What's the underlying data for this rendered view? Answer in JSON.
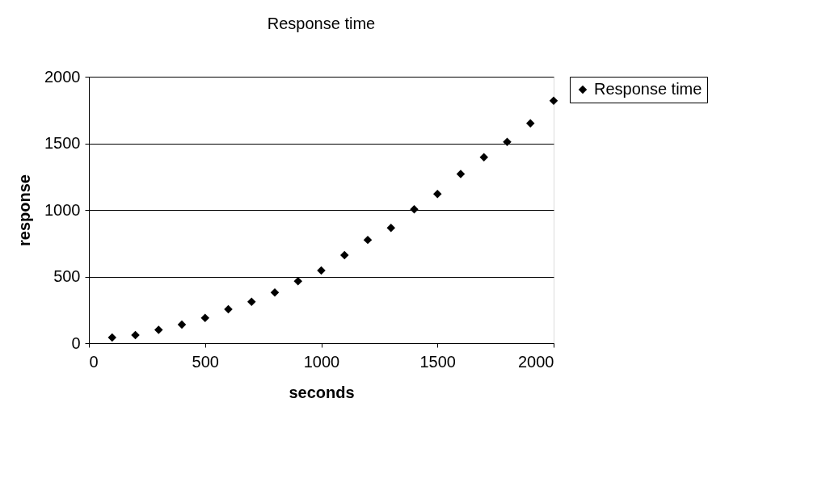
{
  "chart_data": {
    "type": "scatter",
    "title": "Response time",
    "xlabel": "seconds",
    "ylabel": "response",
    "x": [
      100,
      200,
      300,
      400,
      500,
      600,
      700,
      800,
      900,
      1000,
      1100,
      1200,
      1300,
      1400,
      1500,
      1600,
      1700,
      1800,
      1900,
      2000
    ],
    "series": [
      {
        "name": "Response time",
        "color": "#000000",
        "values": [
          42,
          60,
          100,
          140,
          190,
          255,
          310,
          380,
          465,
          545,
          660,
          775,
          865,
          1005,
          1120,
          1270,
          1395,
          1510,
          1650,
          1820
        ]
      }
    ],
    "xlim": [
      0,
      2000
    ],
    "xticks": [
      0,
      500,
      1000,
      1500,
      2000
    ],
    "ylim": [
      0,
      2000
    ],
    "yticks": [
      0,
      500,
      1000,
      1500,
      2000
    ],
    "grid": "y",
    "legend": "right",
    "marker": "diamond"
  }
}
